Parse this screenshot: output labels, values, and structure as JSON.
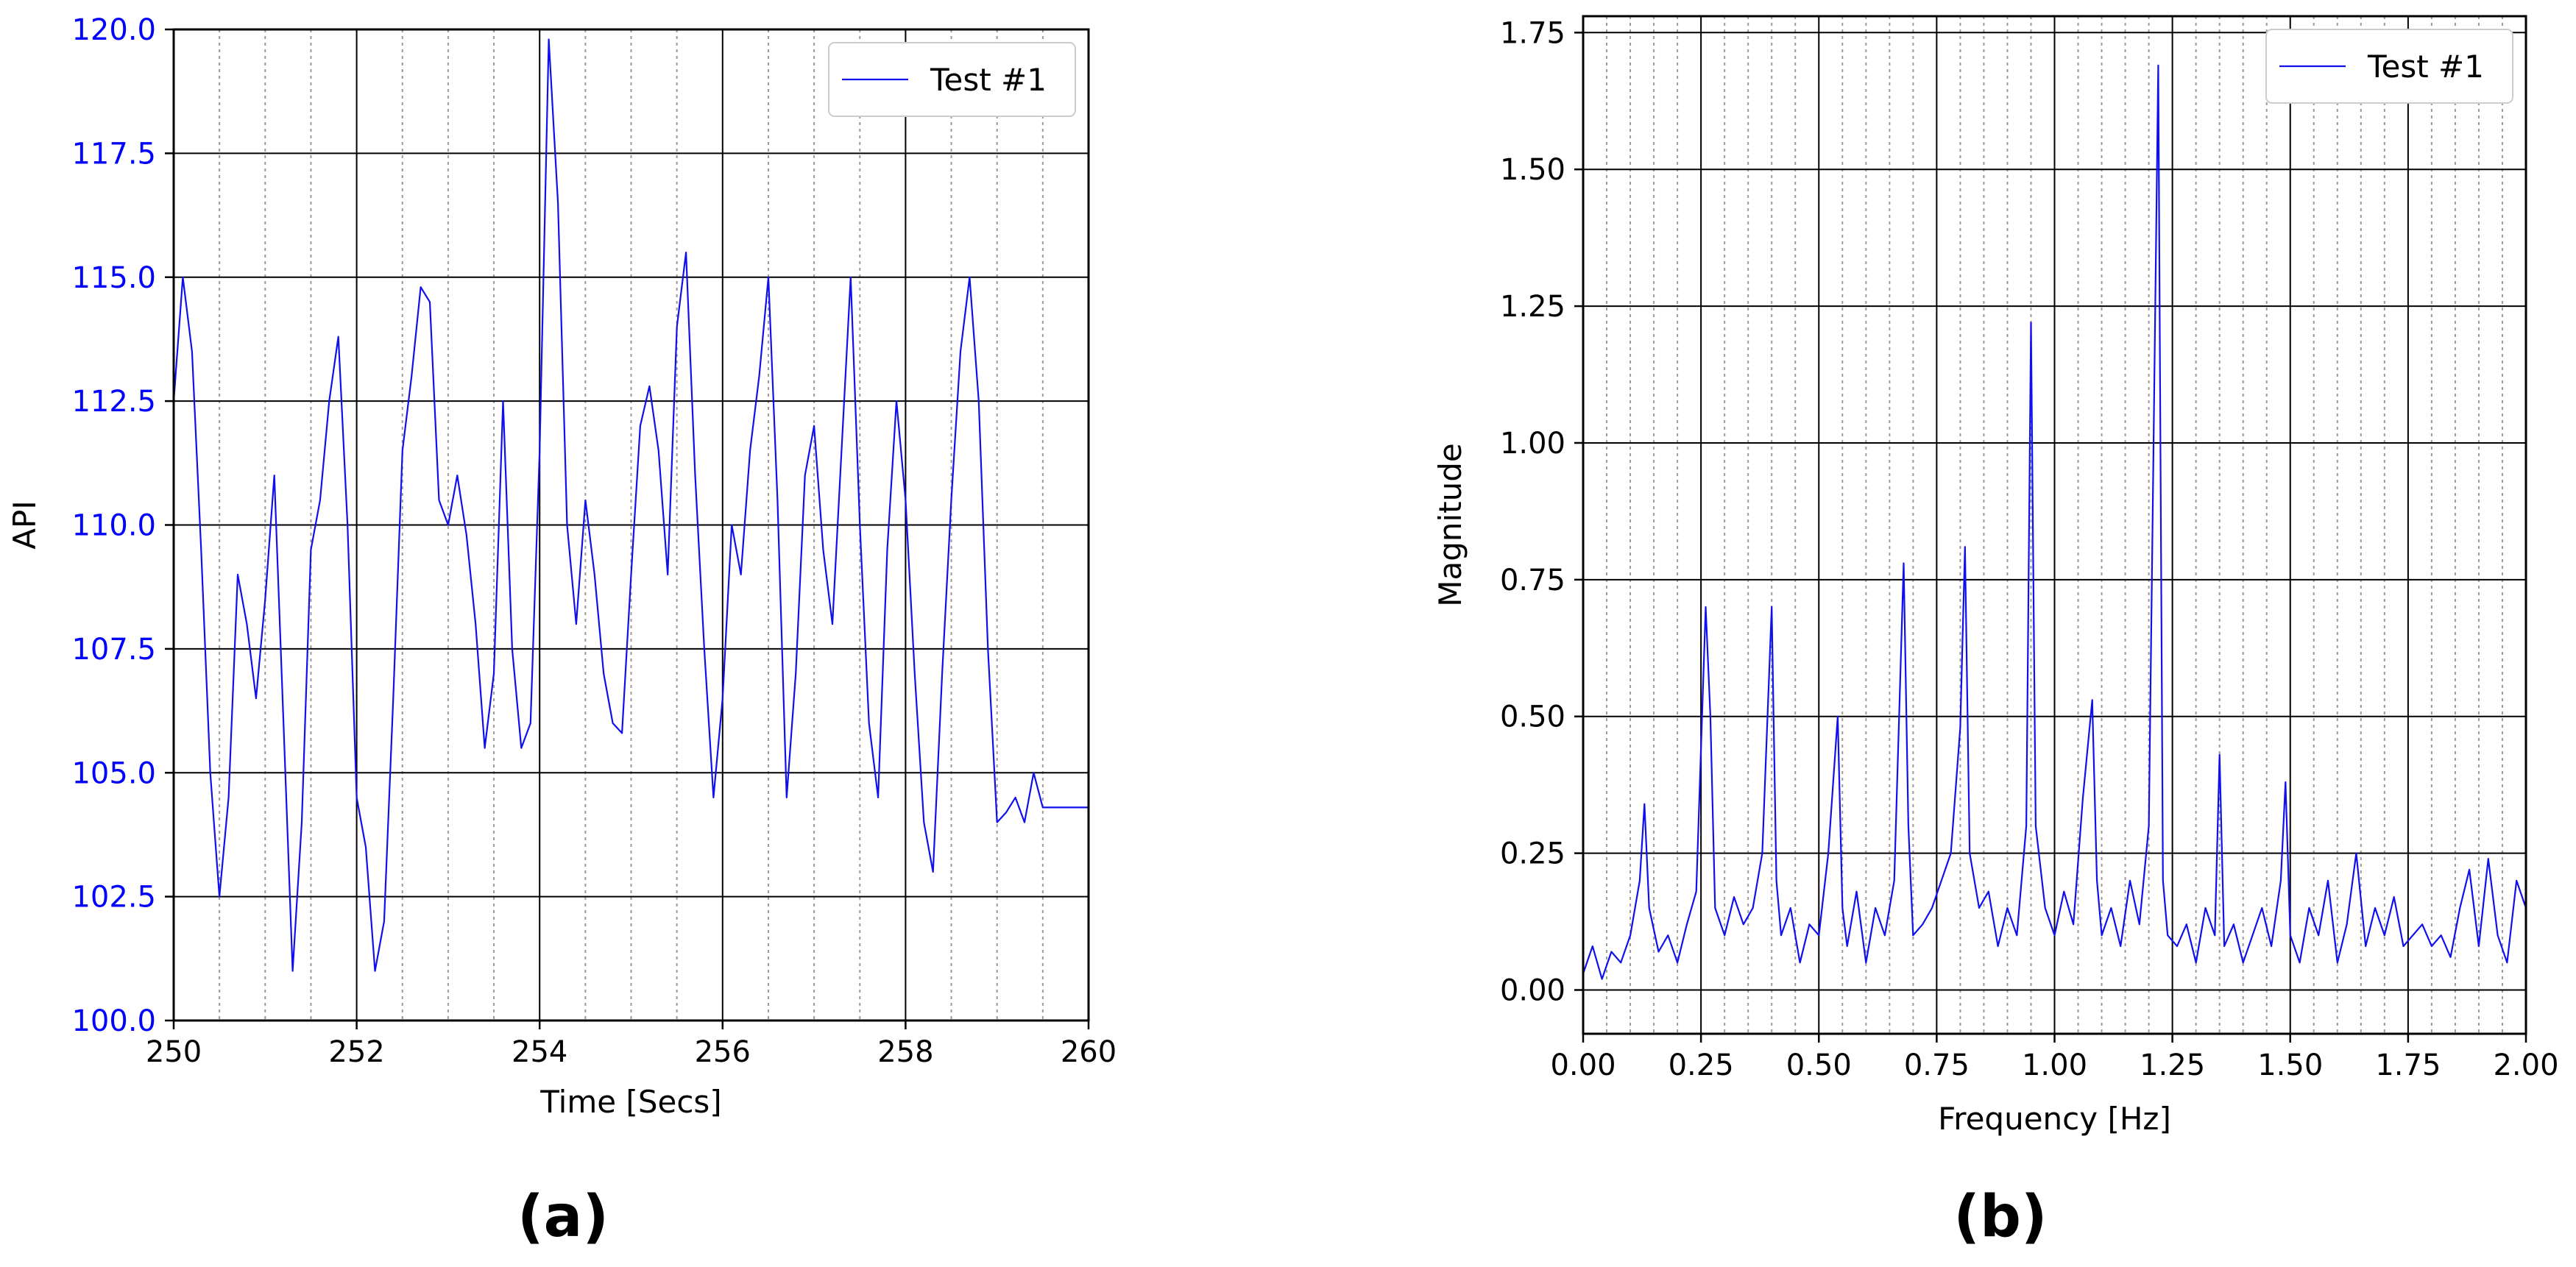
{
  "captions": {
    "a": "(a)",
    "b": "(b)"
  },
  "colors": {
    "series": "#1010ee",
    "tick_left": "#0000ff",
    "grid_major": "#000000",
    "grid_minor": "#9a9a9a",
    "text": "#000000"
  },
  "chart_data": [
    {
      "type": "line",
      "panel": "a",
      "xlabel": "Time [Secs]",
      "ylabel": "API",
      "xlim": [
        250,
        260
      ],
      "ylim": [
        100,
        120
      ],
      "xticks": [
        "250",
        "252",
        "254",
        "256",
        "258",
        "260"
      ],
      "yticks": [
        "100.0",
        "102.5",
        "105.0",
        "107.5",
        "110.0",
        "112.5",
        "115.0",
        "117.5",
        "120.0"
      ],
      "grid": true,
      "legend": "top-right",
      "series": [
        {
          "name": "Test #1",
          "x": [
            250.0,
            250.1,
            250.2,
            250.3,
            250.4,
            250.5,
            250.6,
            250.7,
            250.8,
            250.9,
            251.0,
            251.1,
            251.2,
            251.3,
            251.4,
            251.5,
            251.6,
            251.7,
            251.8,
            251.9,
            252.0,
            252.1,
            252.2,
            252.3,
            252.4,
            252.5,
            252.6,
            252.7,
            252.8,
            252.9,
            253.0,
            253.1,
            253.2,
            253.3,
            253.4,
            253.5,
            253.6,
            253.7,
            253.8,
            253.9,
            254.0,
            254.1,
            254.2,
            254.3,
            254.4,
            254.5,
            254.6,
            254.7,
            254.8,
            254.9,
            255.0,
            255.1,
            255.2,
            255.3,
            255.4,
            255.5,
            255.6,
            255.7,
            255.8,
            255.9,
            256.0,
            256.1,
            256.2,
            256.3,
            256.4,
            256.5,
            256.6,
            256.7,
            256.8,
            256.9,
            257.0,
            257.1,
            257.2,
            257.3,
            257.4,
            257.5,
            257.6,
            257.7,
            257.8,
            257.9,
            258.0,
            258.1,
            258.2,
            258.3,
            258.4,
            258.5,
            258.6,
            258.7,
            258.8,
            258.9,
            259.0,
            259.1,
            259.2,
            259.3,
            259.4,
            259.5,
            259.6,
            259.7,
            259.8,
            259.9,
            260.0
          ],
          "y": [
            112.5,
            115.0,
            113.5,
            109.5,
            105.0,
            102.5,
            104.5,
            109.0,
            108.0,
            106.5,
            108.5,
            111.0,
            106.0,
            101.0,
            104.0,
            109.5,
            110.5,
            112.5,
            113.8,
            110.0,
            104.5,
            103.5,
            101.0,
            102.0,
            106.5,
            111.5,
            113.0,
            114.8,
            114.5,
            110.5,
            110.0,
            111.0,
            109.8,
            108.0,
            105.5,
            107.0,
            112.5,
            107.5,
            105.5,
            106.0,
            111.5,
            119.8,
            116.5,
            110.0,
            108.0,
            110.5,
            109.0,
            107.0,
            106.0,
            105.8,
            109.0,
            112.0,
            112.8,
            111.5,
            109.0,
            114.0,
            115.5,
            111.0,
            107.5,
            104.5,
            106.5,
            110.0,
            109.0,
            111.5,
            113.0,
            115.0,
            110.5,
            104.5,
            107.0,
            111.0,
            112.0,
            109.5,
            108.0,
            111.5,
            115.0,
            110.0,
            106.0,
            104.5,
            109.5,
            112.5,
            110.5,
            107.0,
            104.0,
            103.0,
            107.0,
            110.5,
            113.5,
            115.0,
            112.5,
            107.5,
            104.0,
            104.2,
            104.5,
            104.0,
            105.0,
            104.3,
            104.3,
            104.3,
            104.3,
            104.3,
            104.3
          ]
        }
      ]
    },
    {
      "type": "line",
      "panel": "b",
      "xlabel": "Frequency [Hz]",
      "ylabel": "Magnitude",
      "xlim": [
        0,
        2
      ],
      "ylim": [
        -0.08,
        1.78
      ],
      "xticks": [
        "0.00",
        "0.25",
        "0.50",
        "0.75",
        "1.00",
        "1.25",
        "1.50",
        "1.75",
        "2.00"
      ],
      "yticks": [
        "0.00",
        "0.25",
        "0.50",
        "0.75",
        "1.00",
        "1.25",
        "1.50",
        "1.75"
      ],
      "grid": true,
      "legend": "top-right",
      "series": [
        {
          "name": "Test #1",
          "x": [
            0.0,
            0.02,
            0.04,
            0.06,
            0.08,
            0.1,
            0.12,
            0.13,
            0.14,
            0.16,
            0.18,
            0.2,
            0.22,
            0.24,
            0.26,
            0.27,
            0.28,
            0.3,
            0.32,
            0.34,
            0.36,
            0.38,
            0.4,
            0.41,
            0.42,
            0.44,
            0.46,
            0.48,
            0.5,
            0.52,
            0.54,
            0.55,
            0.56,
            0.58,
            0.6,
            0.62,
            0.64,
            0.66,
            0.68,
            0.69,
            0.7,
            0.72,
            0.74,
            0.76,
            0.78,
            0.8,
            0.81,
            0.82,
            0.84,
            0.86,
            0.88,
            0.9,
            0.92,
            0.94,
            0.95,
            0.96,
            0.98,
            1.0,
            1.02,
            1.04,
            1.06,
            1.08,
            1.09,
            1.1,
            1.12,
            1.14,
            1.16,
            1.18,
            1.2,
            1.22,
            1.23,
            1.24,
            1.26,
            1.28,
            1.3,
            1.32,
            1.34,
            1.35,
            1.36,
            1.38,
            1.4,
            1.42,
            1.44,
            1.46,
            1.48,
            1.49,
            1.5,
            1.52,
            1.54,
            1.56,
            1.58,
            1.6,
            1.62,
            1.64,
            1.66,
            1.68,
            1.7,
            1.72,
            1.74,
            1.76,
            1.78,
            1.8,
            1.82,
            1.84,
            1.86,
            1.88,
            1.9,
            1.92,
            1.94,
            1.96,
            1.98,
            2.0
          ],
          "y": [
            0.03,
            0.08,
            0.02,
            0.07,
            0.05,
            0.1,
            0.2,
            0.34,
            0.15,
            0.07,
            0.1,
            0.05,
            0.12,
            0.18,
            0.7,
            0.5,
            0.15,
            0.1,
            0.17,
            0.12,
            0.15,
            0.25,
            0.7,
            0.2,
            0.1,
            0.15,
            0.05,
            0.12,
            0.1,
            0.25,
            0.5,
            0.15,
            0.08,
            0.18,
            0.05,
            0.15,
            0.1,
            0.2,
            0.78,
            0.3,
            0.1,
            0.12,
            0.15,
            0.2,
            0.25,
            0.48,
            0.81,
            0.25,
            0.15,
            0.18,
            0.08,
            0.15,
            0.1,
            0.3,
            1.22,
            0.3,
            0.15,
            0.1,
            0.18,
            0.12,
            0.35,
            0.53,
            0.2,
            0.1,
            0.15,
            0.08,
            0.2,
            0.12,
            0.3,
            1.69,
            0.2,
            0.1,
            0.08,
            0.12,
            0.05,
            0.15,
            0.1,
            0.43,
            0.08,
            0.12,
            0.05,
            0.1,
            0.15,
            0.08,
            0.2,
            0.38,
            0.1,
            0.05,
            0.15,
            0.1,
            0.2,
            0.05,
            0.12,
            0.25,
            0.08,
            0.15,
            0.1,
            0.17,
            0.08,
            0.1,
            0.12,
            0.08,
            0.1,
            0.06,
            0.15,
            0.22,
            0.08,
            0.24,
            0.1,
            0.05,
            0.2,
            0.15
          ]
        }
      ]
    }
  ]
}
